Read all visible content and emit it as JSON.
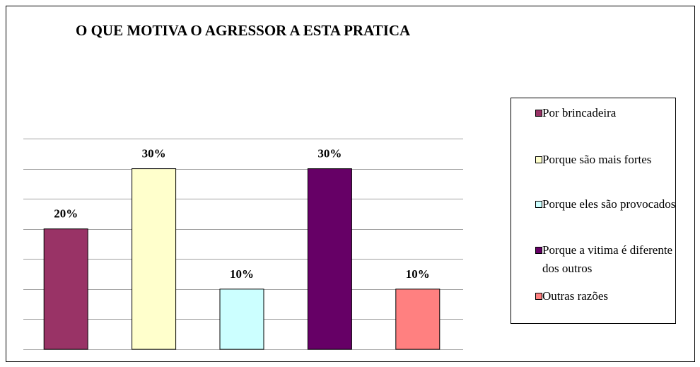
{
  "chart_data": {
    "type": "bar",
    "title": "O QUE MOTIVA O AGRESSOR A ESTA PRATICA",
    "categories": [
      "Por brincadeira",
      "Porque são mais fortes",
      "Porque eles são provocados",
      "Porque a vitima é diferente dos outros",
      "Outras razões"
    ],
    "values": [
      20,
      30,
      10,
      30,
      10
    ],
    "value_labels": [
      "20%",
      "30%",
      "10%",
      "30%",
      "10%"
    ],
    "colors": [
      "#993366",
      "#FFFFCC",
      "#CCFFFF",
      "#660066",
      "#FF8080"
    ],
    "ylim": [
      0,
      35
    ],
    "yticks": [
      0,
      5,
      10,
      15,
      20,
      25,
      30,
      35
    ],
    "grid": true,
    "legend": "right"
  }
}
